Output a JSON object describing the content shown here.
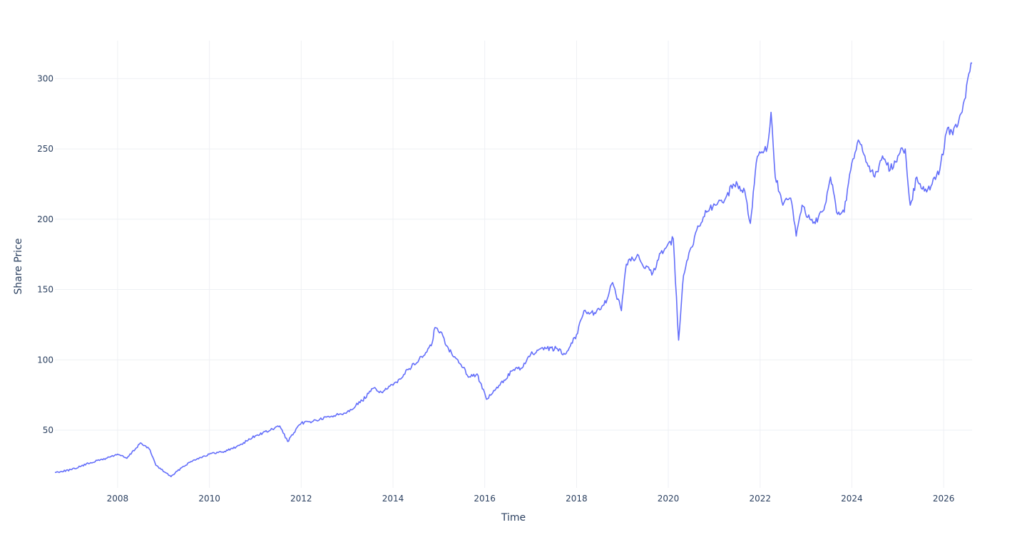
{
  "chart_data": {
    "type": "line",
    "title": "",
    "xlabel": "Time",
    "ylabel": "Share Price",
    "x_range": [
      "2006-08-20",
      "2026-08-15"
    ],
    "ylim": [
      9,
      327
    ],
    "grid": true,
    "legend": "none",
    "x_ticks": [
      {
        "date": "2008-01-01",
        "label": "2008"
      },
      {
        "date": "2010-01-01",
        "label": "2010"
      },
      {
        "date": "2012-01-01",
        "label": "2012"
      },
      {
        "date": "2014-01-01",
        "label": "2014"
      },
      {
        "date": "2016-01-01",
        "label": "2016"
      },
      {
        "date": "2018-01-01",
        "label": "2018"
      },
      {
        "date": "2020-01-01",
        "label": "2020"
      },
      {
        "date": "2022-01-01",
        "label": "2022"
      },
      {
        "date": "2024-01-01",
        "label": "2024"
      },
      {
        "date": "2026-01-01",
        "label": "2026"
      }
    ],
    "y_ticks": [
      {
        "value": 50,
        "label": "50"
      },
      {
        "value": 100,
        "label": "100"
      },
      {
        "value": 150,
        "label": "150"
      },
      {
        "value": 200,
        "label": "200"
      },
      {
        "value": 250,
        "label": "250"
      },
      {
        "value": 300,
        "label": "300"
      }
    ],
    "series": [
      {
        "color": "#636efa",
        "x": [
          "2006-08-20",
          "2007-01-01",
          "2007-06-01",
          "2007-10-01",
          "2008-01-01",
          "2008-03-15",
          "2008-07-01",
          "2008-09-15",
          "2008-11-01",
          "2009-01-15",
          "2009-03-01",
          "2009-06-01",
          "2009-09-01",
          "2010-01-01",
          "2010-05-01",
          "2010-08-01",
          "2011-01-01",
          "2011-05-01",
          "2011-07-15",
          "2011-09-15",
          "2012-01-01",
          "2012-05-01",
          "2012-09-01",
          "2013-01-01",
          "2013-05-01",
          "2013-08-01",
          "2013-10-01",
          "2014-01-01",
          "2014-05-01",
          "2014-09-01",
          "2014-11-01",
          "2014-12-01",
          "2015-01-15",
          "2015-03-01",
          "2015-06-01",
          "2015-09-01",
          "2015-11-01",
          "2016-01-15",
          "2016-05-01",
          "2016-08-01",
          "2016-11-01",
          "2017-01-01",
          "2017-05-01",
          "2017-08-01",
          "2017-10-01",
          "2018-01-01",
          "2018-03-01",
          "2018-06-01",
          "2018-09-01",
          "2018-10-15",
          "2018-12-24",
          "2019-02-01",
          "2019-05-01",
          "2019-07-01",
          "2019-09-01",
          "2019-11-01",
          "2020-02-10",
          "2020-03-23",
          "2020-05-01",
          "2020-07-01",
          "2020-09-01",
          "2020-11-01",
          "2021-01-15",
          "2021-04-01",
          "2021-06-01",
          "2021-09-01",
          "2021-10-15",
          "2021-12-01",
          "2022-01-15",
          "2022-03-01",
          "2022-03-29",
          "2022-05-01",
          "2022-07-01",
          "2022-09-01",
          "2022-10-15",
          "2022-12-01",
          "2023-02-01",
          "2023-04-01",
          "2023-06-01",
          "2023-07-15",
          "2023-09-01",
          "2023-11-01",
          "2024-01-01",
          "2024-03-01",
          "2024-05-01",
          "2024-07-01",
          "2024-09-01",
          "2024-11-01",
          "2025-01-01",
          "2025-03-01",
          "2025-04-10",
          "2025-06-01",
          "2025-08-01",
          "2025-10-01",
          "2025-12-01",
          "2026-02-01",
          "2026-03-15",
          "2026-05-01",
          "2026-06-15",
          "2026-08-15"
        ],
        "y": [
          20,
          22,
          27,
          30,
          33,
          30,
          41,
          36,
          25,
          20,
          17,
          24,
          29,
          33,
          35,
          38,
          46,
          50,
          53,
          42,
          55,
          57,
          60,
          63,
          71,
          80,
          77,
          82,
          93,
          103,
          110,
          123,
          120,
          110,
          100,
          88,
          90,
          72,
          82,
          92,
          95,
          104,
          108,
          108,
          104,
          118,
          135,
          133,
          143,
          155,
          135,
          168,
          175,
          165,
          162,
          176,
          186,
          114,
          160,
          180,
          195,
          205,
          210,
          215,
          225,
          220,
          197,
          240,
          248,
          252,
          276,
          230,
          210,
          215,
          188,
          210,
          200,
          198,
          210,
          230,
          205,
          205,
          240,
          255,
          240,
          230,
          245,
          235,
          245,
          250,
          210,
          230,
          220,
          225,
          235,
          265,
          260,
          270,
          285,
          311
        ]
      }
    ]
  }
}
